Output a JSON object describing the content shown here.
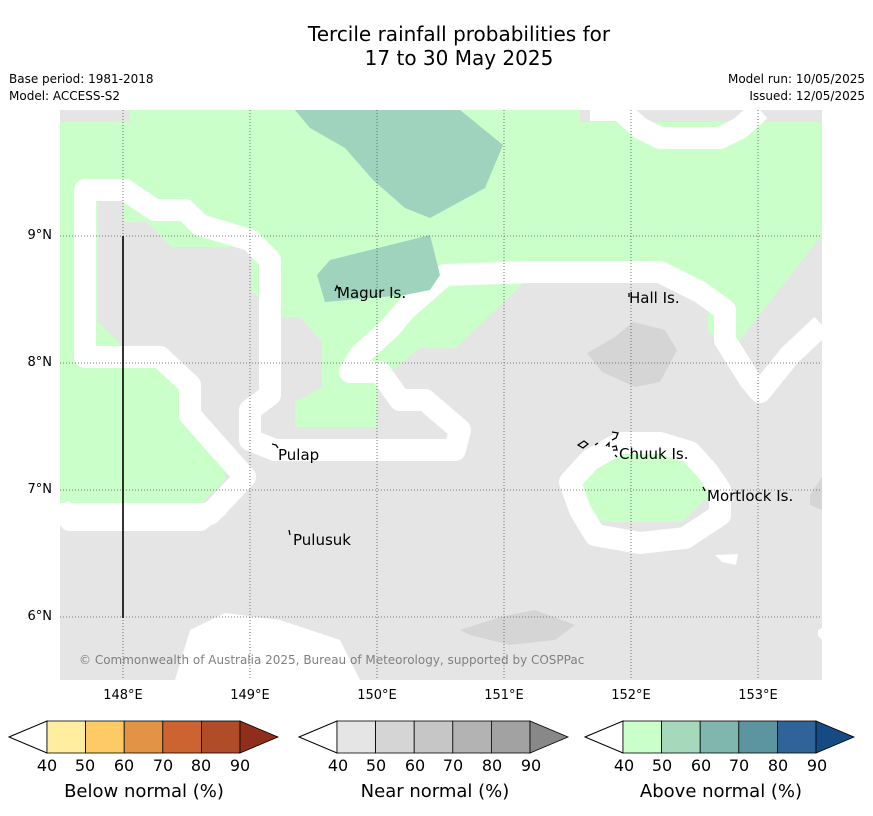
{
  "title": {
    "line1": "Tercile rainfall probabilities for",
    "line2": "17 to 30 May 2025"
  },
  "meta_left": {
    "base_period": "Base period: 1981-2018",
    "model": "Model: ACCESS-S2"
  },
  "meta_right": {
    "model_run": "Model run: 10/05/2025",
    "issued": "Issued: 12/05/2025"
  },
  "lat_labels": [
    "9°N",
    "8°N",
    "7°N",
    "6°N"
  ],
  "lon_labels": [
    "148°E",
    "149°E",
    "150°E",
    "151°E",
    "152°E",
    "153°E"
  ],
  "places": {
    "magur": "Magur Is.",
    "hall": "Hall Is.",
    "pulap": "Pulap",
    "chuuk": "Chuuk Is.",
    "mortlock": "Mortlock Is.",
    "pulusuk": "Pulusuk"
  },
  "copyright": "© Commonwealth of Australia 2025, Bureau of Meteorology, supported by COSPPac",
  "colorbars": {
    "below": {
      "title": "Below normal (%)",
      "ticks": [
        "40",
        "50",
        "60",
        "70",
        "80",
        "90"
      ],
      "colors": [
        "#ffeea0",
        "#fdca65",
        "#e29446",
        "#cd6330",
        "#b14c28",
        "#8f2e1b"
      ]
    },
    "near": {
      "title": "Near normal (%)",
      "ticks": [
        "40",
        "50",
        "60",
        "70",
        "80",
        "90"
      ],
      "colors": [
        "#e5e5e5",
        "#d5d5d5",
        "#c6c6c6",
        "#b3b3b3",
        "#a2a2a2",
        "#888888"
      ]
    },
    "above": {
      "title": "Above normal (%)",
      "ticks": [
        "40",
        "50",
        "60",
        "70",
        "80",
        "90"
      ],
      "colors": [
        "#caffca",
        "#a6d8bc",
        "#7fb6ae",
        "#5c94a0",
        "#2f6399",
        "#154a82"
      ]
    }
  },
  "colors": {
    "near_40": "#e5e5e5",
    "near_50": "#d5d5d5",
    "above_40": "#caffca",
    "above_50": "#9fd3bd"
  }
}
